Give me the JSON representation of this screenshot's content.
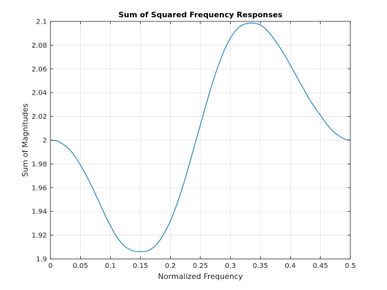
{
  "chart_data": {
    "type": "line",
    "title": "Sum of Squared Frequency Responses",
    "xlabel": "Normalized Frequency",
    "ylabel": "Sum of Magnitudes",
    "xlim": [
      0,
      0.5
    ],
    "ylim": [
      1.9,
      2.1
    ],
    "xticks": [
      "0",
      "0.05",
      "0.1",
      "0.15",
      "0.2",
      "0.25",
      "0.3",
      "0.35",
      "0.4",
      "0.45",
      "0.5"
    ],
    "yticks": [
      "1.9",
      "1.92",
      "1.94",
      "1.96",
      "1.98",
      "2",
      "2.02",
      "2.04",
      "2.06",
      "2.08",
      "2.1"
    ],
    "grid": true,
    "series": [
      {
        "color": "#0072bd",
        "x": [
          0,
          0.01,
          0.02,
          0.03,
          0.04,
          0.05,
          0.06,
          0.07,
          0.08,
          0.09,
          0.1,
          0.11,
          0.12,
          0.13,
          0.14,
          0.15,
          0.16,
          0.17,
          0.18,
          0.19,
          0.2,
          0.21,
          0.22,
          0.23,
          0.24,
          0.25,
          0.26,
          0.27,
          0.28,
          0.29,
          0.3,
          0.31,
          0.32,
          0.33,
          0.34,
          0.35,
          0.36,
          0.37,
          0.38,
          0.39,
          0.4,
          0.41,
          0.42,
          0.43,
          0.44,
          0.45,
          0.46,
          0.47,
          0.48,
          0.49,
          0.5
        ],
        "y": [
          2.0,
          1.9995,
          1.997,
          1.993,
          1.987,
          1.979,
          1.97,
          1.96,
          1.949,
          1.938,
          1.928,
          1.919,
          1.9125,
          1.9085,
          1.9065,
          1.9062,
          1.9065,
          1.909,
          1.914,
          1.922,
          1.932,
          1.945,
          1.96,
          1.977,
          1.995,
          2.013,
          2.031,
          2.048,
          2.063,
          2.076,
          2.086,
          2.093,
          2.097,
          2.0985,
          2.0985,
          2.097,
          2.093,
          2.087,
          2.08,
          2.072,
          2.063,
          2.054,
          2.045,
          2.036,
          2.028,
          2.021,
          2.014,
          2.008,
          2.004,
          2.001,
          2.0
        ]
      }
    ]
  }
}
